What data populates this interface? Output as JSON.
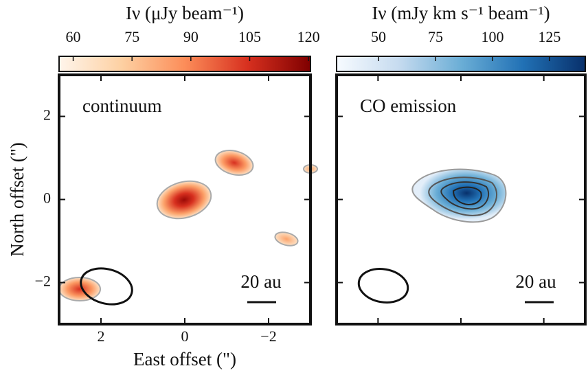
{
  "chart_data": [
    {
      "type": "image",
      "panel_label": "continuum",
      "colorbar": {
        "label": "Iν (μJy beam⁻¹)",
        "lim": [
          56.4,
          120.5
        ],
        "ticks": [
          60,
          75,
          90,
          105,
          120
        ],
        "colors": [
          "#fff5eb",
          "#fdd0a2",
          "#fc8d59",
          "#d7301f",
          "#7f0000"
        ]
      },
      "xlabel": "East offset (\")",
      "ylabel": "North offset (\")",
      "xlim": [
        3,
        -3
      ],
      "ylim": [
        -3,
        3
      ],
      "xticks": [
        2,
        0,
        {
          "value": -2,
          "label": "−2"
        }
      ],
      "yticks": [
        {
          "value": -2,
          "label": "−2"
        },
        0,
        2
      ],
      "scale_bar": "20 au"
    },
    {
      "type": "image",
      "panel_label": "CO emission",
      "colorbar": {
        "label": "Iν (mJy km s⁻¹ beam⁻¹)",
        "lim": [
          31.6,
          140.7
        ],
        "ticks": [
          50,
          75,
          100,
          125
        ],
        "colors": [
          "#f7fbff",
          "#c6dbef",
          "#6baed6",
          "#2171b5",
          "#08306b"
        ]
      },
      "xlim": [
        3,
        -3
      ],
      "ylim": [
        -3,
        3
      ],
      "scale_bar": "20 au"
    }
  ]
}
